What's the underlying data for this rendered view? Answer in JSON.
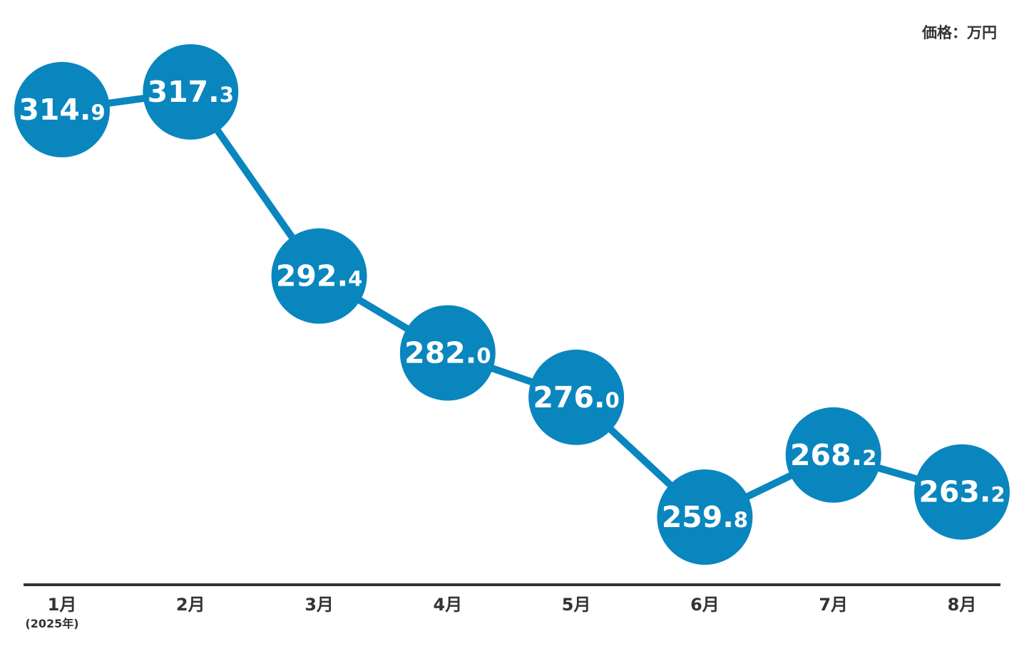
{
  "unit_label": "価格：万円",
  "colors": {
    "marker": "#0a86bf",
    "line": "#0a86bf",
    "axis": "#333333",
    "label_text": "#ffffff"
  },
  "chart_data": {
    "type": "line",
    "categories": [
      "1月",
      "2月",
      "3月",
      "4月",
      "5月",
      "6月",
      "7月",
      "8月"
    ],
    "category_sublabels": [
      "(2025年)",
      "",
      "",
      "",
      "",
      "",
      "",
      ""
    ],
    "series": [
      {
        "values": [
          314.9,
          317.3,
          292.4,
          282.0,
          276.0,
          259.8,
          268.2,
          263.2
        ]
      }
    ],
    "value_labels": [
      "314.9",
      "317.3",
      "292.4",
      "282.0",
      "276.0",
      "259.8",
      "268.2",
      "263.2"
    ],
    "ylim": [
      250,
      320
    ],
    "grid": false,
    "legend": "none",
    "markers": "large circles with value labels"
  }
}
